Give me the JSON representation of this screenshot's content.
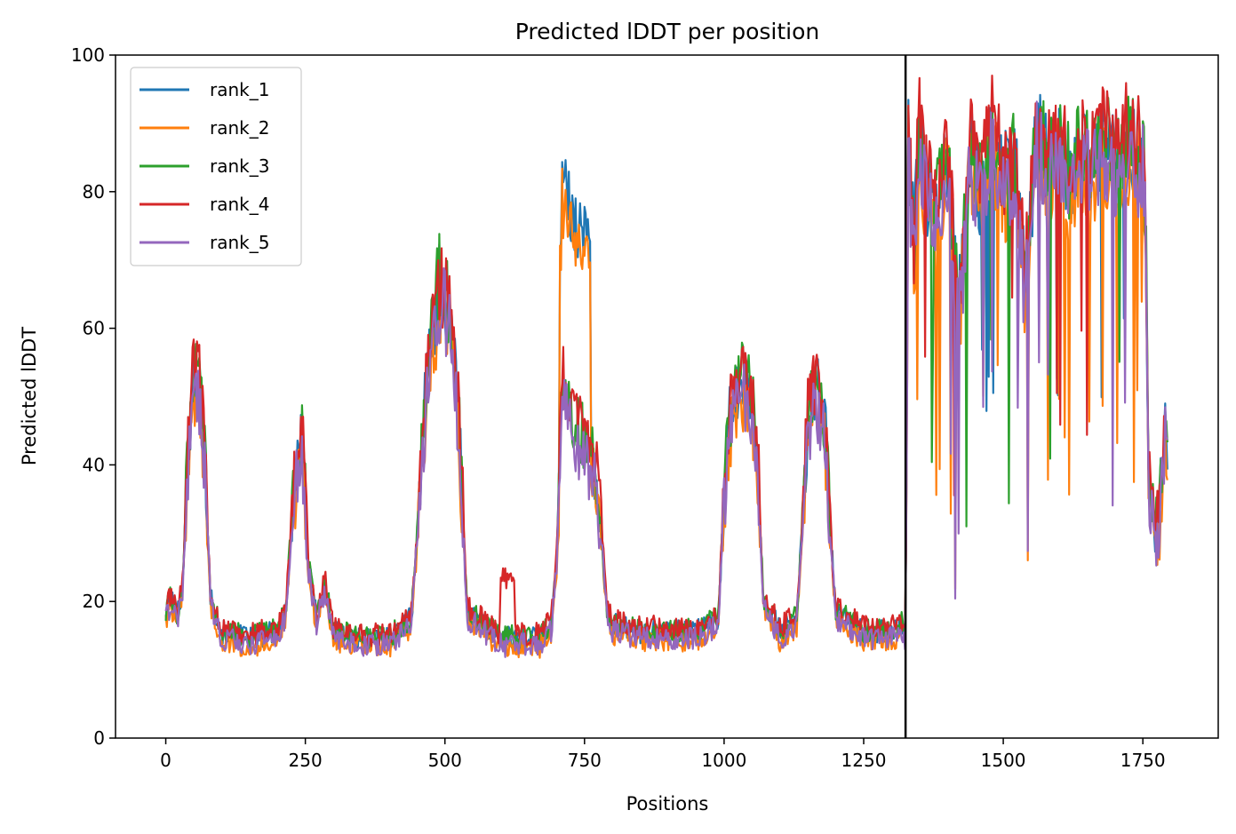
{
  "chart_data": {
    "type": "line",
    "title": "Predicted lDDT per position",
    "xlabel": "Positions",
    "ylabel": "Predicted lDDT",
    "xlim": [
      -90,
      1885
    ],
    "ylim": [
      0,
      100
    ],
    "xticks": [
      0,
      250,
      500,
      750,
      1000,
      1250,
      1500,
      1750
    ],
    "yticks": [
      0,
      20,
      40,
      60,
      80,
      100
    ],
    "vline_x": 1325,
    "grid": false,
    "legend_position": "upper-left",
    "series": [
      {
        "name": "rank_1",
        "color": "#1f77b4"
      },
      {
        "name": "rank_2",
        "color": "#ff7f0e"
      },
      {
        "name": "rank_3",
        "color": "#2ca02c"
      },
      {
        "name": "rank_4",
        "color": "#d62728"
      },
      {
        "name": "rank_5",
        "color": "#9467bd"
      }
    ],
    "profile": {
      "x": [
        0,
        10,
        20,
        30,
        40,
        50,
        60,
        70,
        80,
        100,
        150,
        200,
        215,
        225,
        235,
        245,
        255,
        270,
        285,
        300,
        350,
        400,
        440,
        455,
        470,
        490,
        510,
        525,
        540,
        600,
        670,
        690,
        700,
        710,
        730,
        750,
        765,
        780,
        790,
        800,
        850,
        900,
        950,
        990,
        1000,
        1010,
        1030,
        1050,
        1060,
        1070,
        1100,
        1130,
        1140,
        1150,
        1165,
        1180,
        1190,
        1200,
        1250,
        1300,
        1320,
        1325,
        1330,
        1340,
        1350,
        1360,
        1380,
        1400,
        1420,
        1440,
        1460,
        1480,
        1500,
        1520,
        1540,
        1560,
        1580,
        1600,
        1620,
        1640,
        1660,
        1680,
        1700,
        1720,
        1740,
        1750,
        1755,
        1760,
        1770,
        1780,
        1790,
        1795
      ],
      "values": [
        18,
        20,
        17,
        22,
        40,
        52,
        50,
        40,
        20,
        15,
        14,
        15,
        18,
        30,
        40,
        42,
        25,
        17,
        22,
        15,
        14,
        14,
        17,
        35,
        55,
        65,
        60,
        45,
        18,
        14,
        14,
        16,
        25,
        50,
        45,
        42,
        40,
        30,
        18,
        16,
        15,
        15,
        15,
        17,
        35,
        45,
        52,
        48,
        40,
        20,
        15,
        17,
        30,
        45,
        50,
        45,
        30,
        18,
        15,
        15,
        16,
        14,
        85,
        70,
        88,
        80,
        75,
        84,
        60,
        85,
        78,
        88,
        80,
        84,
        65,
        88,
        82,
        87,
        80,
        85,
        83,
        87,
        82,
        86,
        84,
        85,
        75,
        38,
        30,
        32,
        45,
        40
      ]
    }
  }
}
